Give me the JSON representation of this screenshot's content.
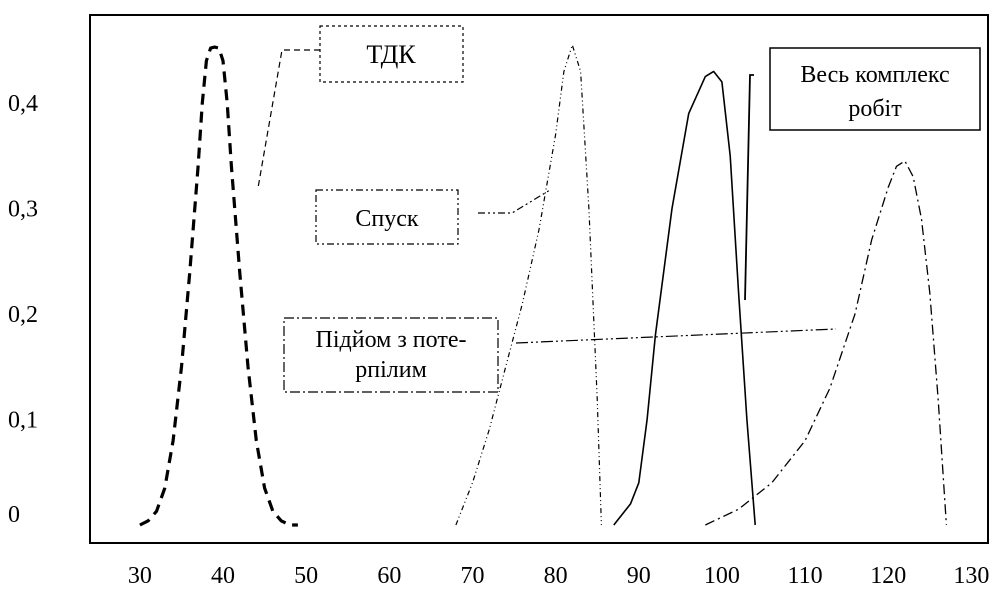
{
  "chart_data": {
    "type": "line",
    "title": "",
    "xlabel": "",
    "ylabel": "",
    "xlim": [
      24,
      132
    ],
    "ylim": [
      0,
      0.5
    ],
    "x_ticks": [
      30,
      40,
      50,
      60,
      70,
      80,
      90,
      100,
      110,
      120,
      130
    ],
    "x_tick_labels": [
      "30",
      "40",
      "50",
      "60",
      "70",
      "80",
      "90",
      "100",
      "110",
      "120",
      "130"
    ],
    "y_ticks": [
      0,
      0.1,
      0.2,
      0.3,
      0.4
    ],
    "y_tick_labels": [
      "0",
      "0,1",
      "0,2",
      "0,3",
      "0,4"
    ],
    "grid": false,
    "legend": "none",
    "series": [
      {
        "name": "ТДК",
        "style": "dashed",
        "x": [
          30,
          31,
          32,
          33,
          34,
          35,
          36,
          37,
          37.5,
          38,
          38.5,
          39,
          39.5,
          40,
          40.5,
          41,
          42,
          43,
          44,
          45,
          46,
          47,
          48,
          49
        ],
        "y": [
          0.0,
          0.004,
          0.013,
          0.035,
          0.08,
          0.15,
          0.24,
          0.34,
          0.4,
          0.44,
          0.452,
          0.453,
          0.452,
          0.44,
          0.4,
          0.34,
          0.24,
          0.15,
          0.08,
          0.035,
          0.013,
          0.004,
          0.0,
          0.0
        ]
      },
      {
        "name": "Спуск",
        "style": "dash-dot-dot",
        "x": [
          68,
          70,
          72,
          74,
          76,
          78,
          80,
          81,
          82,
          83,
          84,
          85,
          85.5
        ],
        "y": [
          0.0,
          0.04,
          0.09,
          0.15,
          0.21,
          0.28,
          0.37,
          0.43,
          0.455,
          0.43,
          0.3,
          0.12,
          0.0
        ]
      },
      {
        "name": "Весь комплекс робіт",
        "style": "solid",
        "x": [
          87,
          88,
          89,
          90,
          91,
          92,
          94,
          96,
          98,
          99,
          100,
          101,
          102,
          103,
          104
        ],
        "y": [
          0.0,
          0.01,
          0.02,
          0.04,
          0.1,
          0.18,
          0.3,
          0.39,
          0.425,
          0.43,
          0.42,
          0.35,
          0.22,
          0.1,
          0.0
        ]
      },
      {
        "name": "Підйом з потерпілим",
        "style": "dash-dot",
        "x": [
          98,
          102,
          106,
          110,
          113,
          116,
          118,
          120,
          121,
          122,
          123,
          124,
          125,
          126,
          127
        ],
        "y": [
          0.0,
          0.015,
          0.04,
          0.08,
          0.13,
          0.2,
          0.27,
          0.32,
          0.34,
          0.345,
          0.33,
          0.29,
          0.22,
          0.12,
          0.0
        ]
      }
    ],
    "annotations": [
      {
        "text": "ТДК",
        "series": "ТДК"
      },
      {
        "text": "Спуск",
        "series": "Спуск"
      },
      {
        "text": "Підйом з поте-",
        "text2": "рпілим",
        "series": "Підйом з потерпілим"
      },
      {
        "text": "Весь комплекс",
        "text2": "робіт",
        "series": "Весь комплекс робіт"
      }
    ]
  }
}
